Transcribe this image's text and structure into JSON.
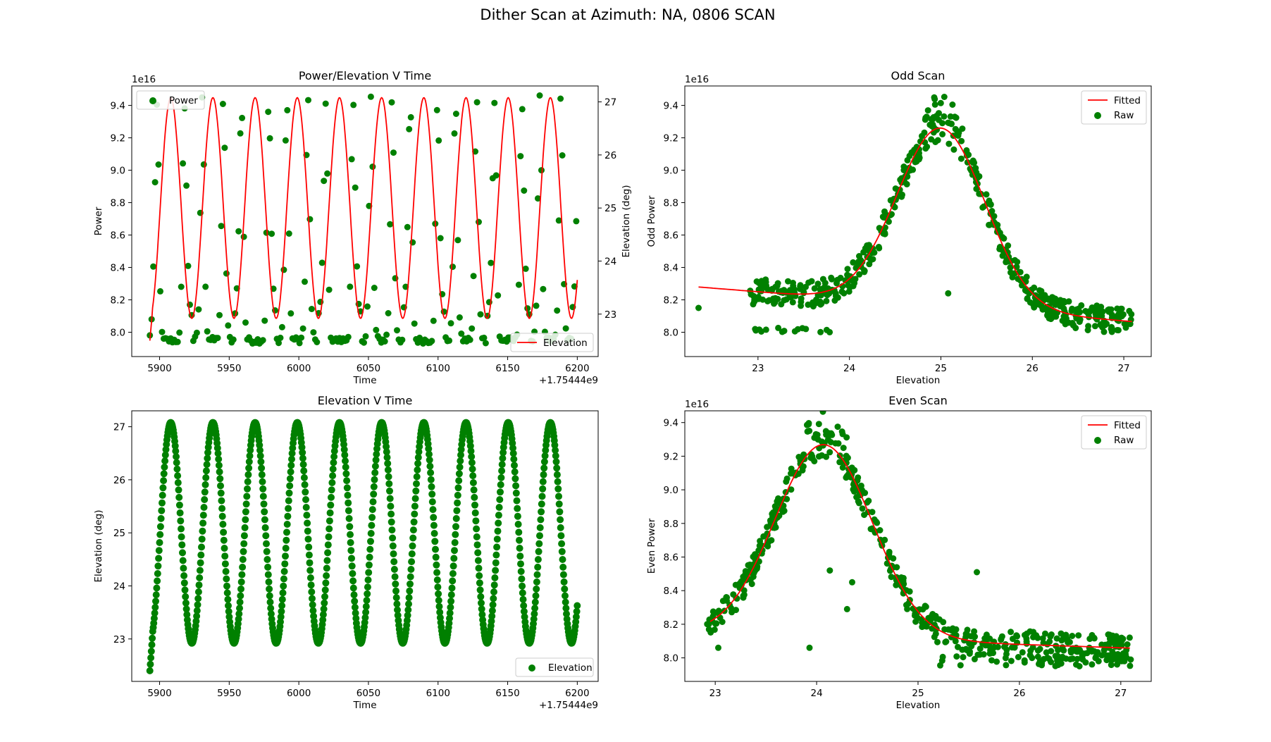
{
  "figure": {
    "suptitle": "Dither Scan at Azimuth: NA, 0806 SCAN",
    "colors": {
      "raw": "#008000",
      "fit": "#ff0000"
    }
  },
  "chart_data": [
    {
      "id": "p1",
      "type": "scatter",
      "title": "Power/Elevation V Time",
      "xlabel": "Time",
      "ylabel": "Power",
      "y2label": "Elevation (deg)",
      "xlim": [
        5880,
        6215
      ],
      "ylim": [
        7.85,
        9.52
      ],
      "y2lim": [
        22.2,
        27.3
      ],
      "xticks": [
        5900,
        5950,
        6000,
        6050,
        6100,
        6150,
        6200
      ],
      "yticks": [
        8.0,
        8.2,
        8.4,
        8.6,
        8.8,
        9.0,
        9.2,
        9.4
      ],
      "y2ticks": [
        23,
        24,
        25,
        26,
        27
      ],
      "y_scale_text": "1e16",
      "x_offset_text": "+1.75444e9",
      "legends": [
        {
          "label": "Power",
          "marker": "dot",
          "placement": "upper-left"
        },
        {
          "label": "Elevation",
          "marker": "line",
          "placement": "lower-right"
        }
      ],
      "model": {
        "time_start": 5893,
        "time_end": 6200,
        "period": 30.3,
        "phase_time": 5908,
        "elev_min": 22.92,
        "elev_max": 27.08,
        "power_base": 7.95,
        "power_peak_odd": 9.46,
        "power_peak_even": 9.41,
        "odd_center_elev": 25.0,
        "even_center_elev": 24.07,
        "beam_width": 0.55
      },
      "series": [
        {
          "name": "Power",
          "kind": "scatter"
        },
        {
          "name": "Elevation",
          "kind": "line",
          "axis": "y2"
        }
      ]
    },
    {
      "id": "p2",
      "type": "scatter",
      "title": "Odd Scan",
      "xlabel": "Elevation",
      "ylabel": "Odd Power",
      "xlim": [
        22.2,
        27.3
      ],
      "ylim": [
        7.85,
        9.52
      ],
      "xticks": [
        23,
        24,
        25,
        26,
        27
      ],
      "yticks": [
        8.0,
        8.2,
        8.4,
        8.6,
        8.8,
        9.0,
        9.2,
        9.4
      ],
      "y_scale_text": "1e16",
      "legends": [
        {
          "label": "Fitted",
          "marker": "line",
          "placement": "upper-right"
        },
        {
          "label": "Raw",
          "marker": "dot",
          "placement": "upper-right"
        }
      ],
      "fit": {
        "amplitude": 1.1,
        "center": 25.0,
        "sigma": 0.48,
        "offset_at_23": 8.25,
        "slope": -0.045
      },
      "raw_summary": {
        "x_range": [
          22.3,
          27.1
        ],
        "peak_y": 9.46,
        "base_y": 7.95
      },
      "outliers": [
        {
          "x": 22.35,
          "y": 8.15
        },
        {
          "x": 25.08,
          "y": 8.24
        }
      ]
    },
    {
      "id": "p3",
      "type": "scatter",
      "title": "Elevation V Time",
      "xlabel": "Time",
      "ylabel": "Elevation (deg)",
      "xlim": [
        5880,
        6215
      ],
      "ylim": [
        22.2,
        27.3
      ],
      "xticks": [
        5900,
        5950,
        6000,
        6050,
        6100,
        6150,
        6200
      ],
      "yticks": [
        23,
        24,
        25,
        26,
        27
      ],
      "x_offset_text": "+1.75444e9",
      "legends": [
        {
          "label": "Elevation",
          "marker": "dot",
          "placement": "lower-right"
        }
      ]
    },
    {
      "id": "p4",
      "type": "scatter",
      "title": "Even Scan",
      "xlabel": "Elevation",
      "ylabel": "Even Power",
      "xlim": [
        22.7,
        27.3
      ],
      "ylim": [
        7.86,
        9.47
      ],
      "xticks": [
        23,
        24,
        25,
        26,
        27
      ],
      "yticks": [
        8.0,
        8.2,
        8.4,
        8.6,
        8.8,
        9.0,
        9.2,
        9.4
      ],
      "y_scale_text": "1e16",
      "legends": [
        {
          "label": "Fitted",
          "marker": "line",
          "placement": "upper-right"
        },
        {
          "label": "Raw",
          "marker": "dot",
          "placement": "upper-right"
        }
      ],
      "fit": {
        "amplitude": 1.15,
        "center": 24.07,
        "sigma": 0.48,
        "offset_at_23": 8.14,
        "slope": -0.02
      },
      "raw_summary": {
        "x_range": [
          22.9,
          27.1
        ],
        "peak_y": 9.41,
        "base_y": 7.94
      },
      "outliers": [
        {
          "x": 23.03,
          "y": 8.06
        },
        {
          "x": 23.93,
          "y": 8.06
        },
        {
          "x": 24.13,
          "y": 8.52
        },
        {
          "x": 24.3,
          "y": 8.29
        },
        {
          "x": 24.35,
          "y": 8.45
        },
        {
          "x": 25.58,
          "y": 8.51
        }
      ]
    }
  ]
}
